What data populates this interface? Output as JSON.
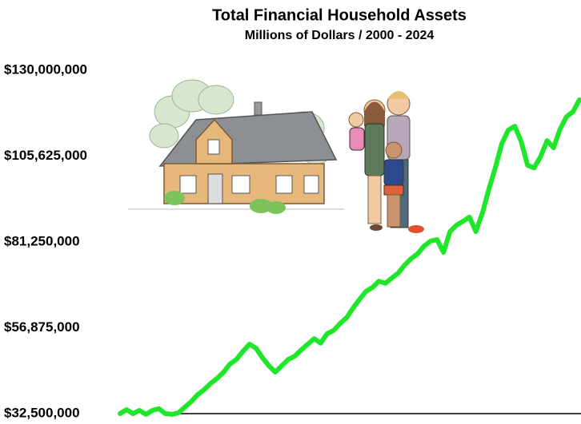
{
  "chart_data": {
    "type": "line",
    "title": "Total Financial Household Assets",
    "subtitle": "Millions of Dollars / 2000 - 2024",
    "ylim": [
      32500000,
      130000000
    ],
    "yticks": [
      {
        "value": 32500000,
        "label": "$32,500,000"
      },
      {
        "value": 56875000,
        "label": "$56,875,000"
      },
      {
        "value": 81250000,
        "label": "$81,250,000"
      },
      {
        "value": 105625000,
        "label": "$105,625,000"
      },
      {
        "value": 130000000,
        "label": "$130,000,000"
      }
    ],
    "grid": false,
    "series": [
      {
        "color": "#1ee628",
        "values": [
          32500000,
          33600000,
          32500000,
          33400000,
          32300000,
          33400000,
          33900000,
          32500000,
          32300000,
          32700000,
          34300000,
          35900000,
          37900000,
          39300000,
          41100000,
          42500000,
          44300000,
          46600000,
          47900000,
          50200000,
          52200000,
          51100000,
          48400000,
          46100000,
          44300000,
          46100000,
          47900000,
          48800000,
          50600000,
          52200000,
          53800000,
          52500000,
          55200000,
          56100000,
          58100000,
          59700000,
          62400000,
          64900000,
          67200000,
          68300000,
          70100000,
          69500000,
          71000000,
          72400000,
          74700000,
          76500000,
          77900000,
          80100000,
          81500000,
          81900000,
          78300000,
          84200000,
          86000000,
          87100000,
          88300000,
          84200000,
          89400000,
          96200000,
          102300000,
          109100000,
          113000000,
          114100000,
          109800000,
          103000000,
          102300000,
          105500000,
          110000000,
          108000000,
          113200000,
          116800000,
          118200000,
          121600000
        ]
      }
    ]
  }
}
